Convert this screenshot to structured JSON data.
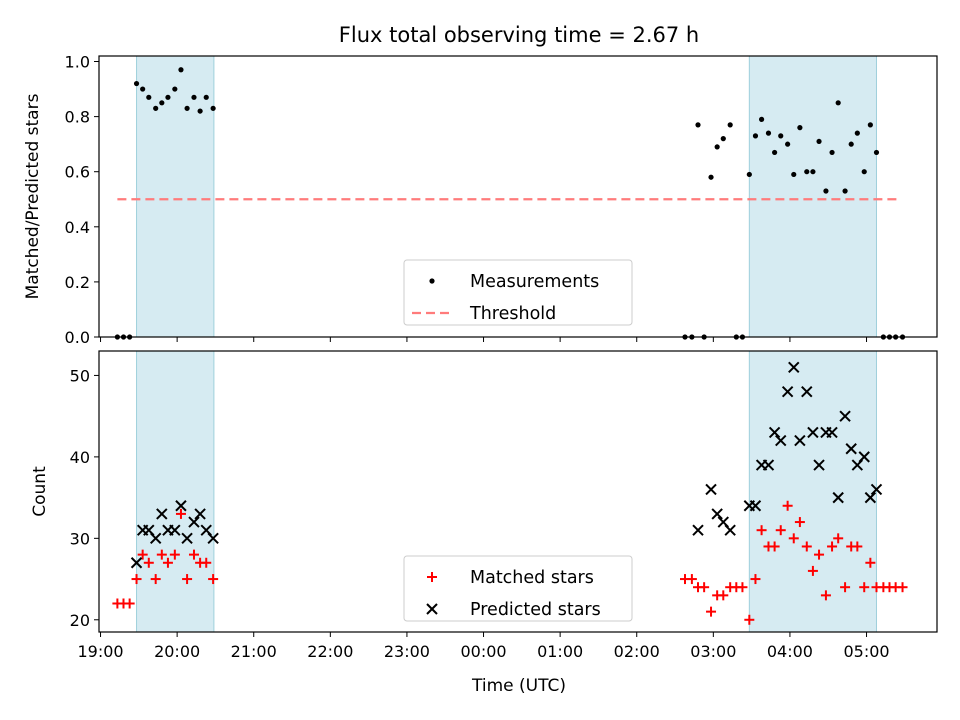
{
  "title": "Flux total observing time = 2.67 h",
  "chart_data": [
    {
      "type": "scatter",
      "panel": "top",
      "ylabel": "Matched/Predicted stars",
      "xlabel": "",
      "x_unit": "hours since 19:00 UTC",
      "xlim": [
        -0.02,
        10.92
      ],
      "ylim": [
        0,
        1.02
      ],
      "yticks": [
        0.0,
        0.2,
        0.4,
        0.6,
        0.8,
        1.0
      ],
      "ytick_labels": [
        "0.0",
        "0.2",
        "0.4",
        "0.6",
        "0.8",
        "1.0"
      ],
      "shaded_spans": [
        [
          0.47,
          1.48
        ],
        [
          8.47,
          10.13
        ]
      ],
      "threshold": {
        "name": "Threshold",
        "y": 0.5,
        "x_range": [
          0.22,
          10.4
        ],
        "color": "#ff7b7b"
      },
      "series": [
        {
          "name": "Measurements",
          "color": "#000000",
          "points": [
            [
              0.22,
              0.0
            ],
            [
              0.3,
              0.0
            ],
            [
              0.38,
              0.0
            ],
            [
              0.47,
              0.92
            ],
            [
              0.55,
              0.9
            ],
            [
              0.63,
              0.87
            ],
            [
              0.72,
              0.83
            ],
            [
              0.8,
              0.85
            ],
            [
              0.88,
              0.87
            ],
            [
              0.97,
              0.9
            ],
            [
              1.05,
              0.97
            ],
            [
              1.13,
              0.83
            ],
            [
              1.22,
              0.87
            ],
            [
              1.3,
              0.82
            ],
            [
              1.38,
              0.87
            ],
            [
              1.47,
              0.83
            ],
            [
              7.63,
              0.0
            ],
            [
              7.72,
              0.0
            ],
            [
              7.8,
              0.77
            ],
            [
              7.88,
              0.0
            ],
            [
              7.97,
              0.58
            ],
            [
              8.05,
              0.69
            ],
            [
              8.13,
              0.72
            ],
            [
              8.22,
              0.77
            ],
            [
              8.3,
              0.0
            ],
            [
              8.38,
              0.0
            ],
            [
              8.47,
              0.59
            ],
            [
              8.55,
              0.73
            ],
            [
              8.63,
              0.79
            ],
            [
              8.72,
              0.74
            ],
            [
              8.8,
              0.67
            ],
            [
              8.88,
              0.73
            ],
            [
              8.97,
              0.7
            ],
            [
              9.05,
              0.59
            ],
            [
              9.13,
              0.76
            ],
            [
              9.22,
              0.6
            ],
            [
              9.3,
              0.6
            ],
            [
              9.38,
              0.71
            ],
            [
              9.47,
              0.53
            ],
            [
              9.55,
              0.67
            ],
            [
              9.63,
              0.85
            ],
            [
              9.72,
              0.53
            ],
            [
              9.8,
              0.7
            ],
            [
              9.88,
              0.74
            ],
            [
              9.97,
              0.6
            ],
            [
              10.05,
              0.77
            ],
            [
              10.13,
              0.67
            ],
            [
              10.22,
              0.0
            ],
            [
              10.3,
              0.0
            ],
            [
              10.38,
              0.0
            ],
            [
              10.47,
              0.0
            ]
          ]
        }
      ],
      "legend": {
        "position": "lower-center",
        "entries": [
          "Measurements",
          "Threshold"
        ]
      },
      "grid": false
    },
    {
      "type": "scatter",
      "panel": "bottom",
      "ylabel": "Count",
      "xlabel": "Time (UTC)",
      "x_unit": "hours since 19:00 UTC",
      "xlim": [
        -0.02,
        10.92
      ],
      "ylim": [
        18.5,
        53
      ],
      "yticks": [
        20,
        30,
        40,
        50
      ],
      "ytick_labels": [
        "20",
        "30",
        "40",
        "50"
      ],
      "xticks": [
        0,
        1,
        2,
        3,
        4,
        5,
        6,
        7,
        8,
        9,
        10
      ],
      "xtick_labels": [
        "19:00",
        "20:00",
        "21:00",
        "22:00",
        "23:00",
        "00:00",
        "01:00",
        "02:00",
        "03:00",
        "04:00",
        "05:00"
      ],
      "shaded_spans": [
        [
          0.47,
          1.48
        ],
        [
          8.47,
          10.13
        ]
      ],
      "series": [
        {
          "name": "Matched stars",
          "marker": "plus",
          "color": "#ff0000",
          "points": [
            [
              0.22,
              22
            ],
            [
              0.3,
              22
            ],
            [
              0.38,
              22
            ],
            [
              0.47,
              25
            ],
            [
              0.55,
              28
            ],
            [
              0.63,
              27
            ],
            [
              0.72,
              25
            ],
            [
              0.8,
              28
            ],
            [
              0.88,
              27
            ],
            [
              0.97,
              28
            ],
            [
              1.05,
              33
            ],
            [
              1.13,
              25
            ],
            [
              1.22,
              28
            ],
            [
              1.3,
              27
            ],
            [
              1.38,
              27
            ],
            [
              1.47,
              25
            ],
            [
              7.63,
              25
            ],
            [
              7.72,
              25
            ],
            [
              7.8,
              24
            ],
            [
              7.88,
              24
            ],
            [
              7.97,
              21
            ],
            [
              8.05,
              23
            ],
            [
              8.13,
              23
            ],
            [
              8.22,
              24
            ],
            [
              8.3,
              24
            ],
            [
              8.38,
              24
            ],
            [
              8.47,
              20
            ],
            [
              8.55,
              25
            ],
            [
              8.63,
              31
            ],
            [
              8.72,
              29
            ],
            [
              8.8,
              29
            ],
            [
              8.88,
              31
            ],
            [
              8.97,
              34
            ],
            [
              9.05,
              30
            ],
            [
              9.13,
              32
            ],
            [
              9.22,
              29
            ],
            [
              9.3,
              26
            ],
            [
              9.38,
              28
            ],
            [
              9.47,
              23
            ],
            [
              9.55,
              29
            ],
            [
              9.63,
              30
            ],
            [
              9.72,
              24
            ],
            [
              9.8,
              29
            ],
            [
              9.88,
              29
            ],
            [
              9.97,
              24
            ],
            [
              10.05,
              27
            ],
            [
              10.13,
              24
            ],
            [
              10.22,
              24
            ],
            [
              10.3,
              24
            ],
            [
              10.38,
              24
            ],
            [
              10.47,
              24
            ]
          ]
        },
        {
          "name": "Predicted stars",
          "marker": "x",
          "color": "#000000",
          "points": [
            [
              0.47,
              27
            ],
            [
              0.55,
              31
            ],
            [
              0.63,
              31
            ],
            [
              0.72,
              30
            ],
            [
              0.8,
              33
            ],
            [
              0.88,
              31
            ],
            [
              0.97,
              31
            ],
            [
              1.05,
              34
            ],
            [
              1.13,
              30
            ],
            [
              1.22,
              32
            ],
            [
              1.3,
              33
            ],
            [
              1.38,
              31
            ],
            [
              1.47,
              30
            ],
            [
              7.8,
              31
            ],
            [
              7.97,
              36
            ],
            [
              8.05,
              33
            ],
            [
              8.13,
              32
            ],
            [
              8.22,
              31
            ],
            [
              8.47,
              34
            ],
            [
              8.55,
              34
            ],
            [
              8.63,
              39
            ],
            [
              8.72,
              39
            ],
            [
              8.8,
              43
            ],
            [
              8.88,
              42
            ],
            [
              8.97,
              48
            ],
            [
              9.05,
              51
            ],
            [
              9.13,
              42
            ],
            [
              9.22,
              48
            ],
            [
              9.3,
              43
            ],
            [
              9.38,
              39
            ],
            [
              9.47,
              43
            ],
            [
              9.55,
              43
            ],
            [
              9.63,
              35
            ],
            [
              9.72,
              45
            ],
            [
              9.8,
              41
            ],
            [
              9.88,
              39
            ],
            [
              9.97,
              40
            ],
            [
              10.05,
              35
            ],
            [
              10.13,
              36
            ]
          ]
        }
      ],
      "legend": {
        "position": "lower-center",
        "entries": [
          "Matched stars",
          "Predicted stars"
        ]
      },
      "grid": false
    }
  ]
}
